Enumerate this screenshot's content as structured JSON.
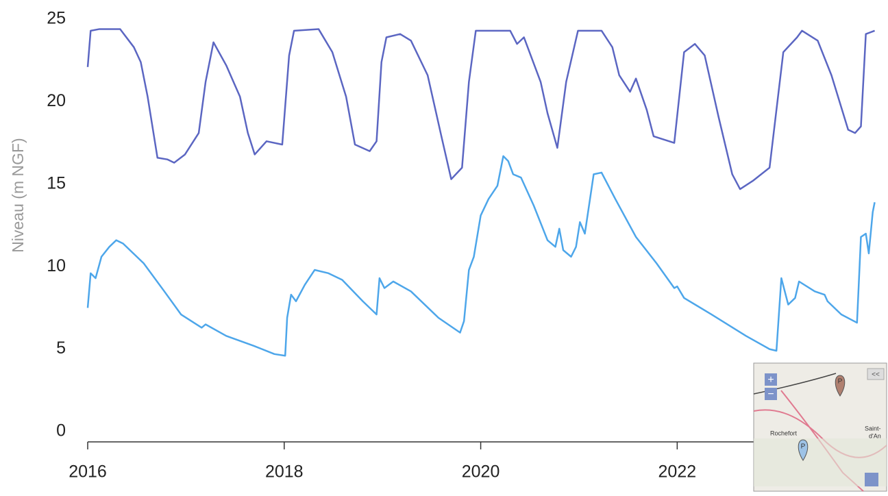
{
  "chart_data": {
    "type": "line",
    "ylabel": "Niveau (m NGF)",
    "xlim": [
      2016,
      2024.02
    ],
    "ylim": [
      0,
      25
    ],
    "xticks": [
      2016,
      2018,
      2020,
      2022
    ],
    "yticks": [
      0,
      5,
      10,
      15,
      20,
      25
    ],
    "grid": false,
    "series": [
      {
        "color": "#5b66c2",
        "x": [
          2016.0,
          2016.03,
          2016.12,
          2016.33,
          2016.47,
          2016.54,
          2016.61,
          2016.71,
          2016.81,
          2016.88,
          2016.99,
          2017.13,
          2017.2,
          2017.28,
          2017.41,
          2017.55,
          2017.63,
          2017.7,
          2017.82,
          2017.98,
          2018.05,
          2018.1,
          2018.35,
          2018.49,
          2018.63,
          2018.72,
          2018.87,
          2018.94,
          2018.99,
          2019.04,
          2019.18,
          2019.29,
          2019.46,
          2019.6,
          2019.7,
          2019.81,
          2019.88,
          2019.95,
          2020.3,
          2020.37,
          2020.44,
          2020.61,
          2020.68,
          2020.78,
          2020.87,
          2020.99,
          2021.23,
          2021.34,
          2021.41,
          2021.52,
          2021.58,
          2021.69,
          2021.76,
          2021.97,
          2022.07,
          2022.18,
          2022.28,
          2022.42,
          2022.56,
          2022.64,
          2022.77,
          2022.94,
          2023.08,
          2023.22,
          2023.27,
          2023.43,
          2023.57,
          2023.74,
          2023.81,
          2023.87,
          2023.92,
          2024.01
        ],
        "values": [
          22.1,
          24.3,
          24.4,
          24.4,
          23.3,
          22.4,
          20.3,
          16.6,
          16.5,
          16.3,
          16.8,
          18.1,
          21.2,
          23.6,
          22.2,
          20.3,
          18.1,
          16.8,
          17.6,
          17.4,
          22.8,
          24.3,
          24.4,
          23.0,
          20.3,
          17.4,
          17.0,
          17.6,
          22.4,
          23.9,
          24.1,
          23.7,
          21.6,
          17.9,
          15.3,
          16.0,
          21.2,
          24.3,
          24.3,
          23.5,
          23.9,
          21.2,
          19.3,
          17.2,
          21.2,
          24.3,
          24.3,
          23.3,
          21.6,
          20.6,
          21.4,
          19.5,
          17.9,
          17.5,
          23.0,
          23.5,
          22.8,
          19.1,
          15.6,
          14.7,
          15.2,
          16.0,
          23.0,
          23.9,
          24.3,
          23.7,
          21.6,
          18.3,
          18.1,
          18.5,
          24.1,
          24.3
        ]
      },
      {
        "color": "#4da6ea",
        "x": [
          2016.0,
          2016.03,
          2016.08,
          2016.14,
          2016.22,
          2016.29,
          2016.36,
          2016.57,
          2016.78,
          2016.95,
          2017.16,
          2017.2,
          2017.41,
          2017.69,
          2017.9,
          2018.01,
          2018.03,
          2018.07,
          2018.12,
          2018.21,
          2018.31,
          2018.45,
          2018.59,
          2018.8,
          2018.94,
          2018.97,
          2019.02,
          2019.11,
          2019.29,
          2019.57,
          2019.79,
          2019.83,
          2019.88,
          2019.93,
          2020.0,
          2020.08,
          2020.17,
          2020.23,
          2020.28,
          2020.33,
          2020.41,
          2020.54,
          2020.68,
          2020.76,
          2020.8,
          2020.84,
          2020.92,
          2020.97,
          2021.01,
          2021.06,
          2021.15,
          2021.23,
          2021.37,
          2021.58,
          2021.79,
          2021.97,
          2022.0,
          2022.07,
          2022.35,
          2022.7,
          2022.94,
          2023.01,
          2023.06,
          2023.13,
          2023.2,
          2023.24,
          2023.4,
          2023.5,
          2023.53,
          2023.67,
          2023.83,
          2023.87,
          2023.92,
          2023.95,
          2023.99,
          2024.01
        ],
        "values": [
          7.5,
          9.6,
          9.3,
          10.6,
          11.2,
          11.6,
          11.4,
          10.2,
          8.5,
          7.1,
          6.3,
          6.5,
          5.8,
          5.2,
          4.7,
          4.6,
          6.9,
          8.3,
          7.9,
          8.9,
          9.8,
          9.6,
          9.2,
          7.9,
          7.1,
          9.3,
          8.7,
          9.1,
          8.5,
          6.9,
          6.0,
          6.7,
          9.8,
          10.6,
          13.1,
          14.1,
          14.9,
          16.7,
          16.4,
          15.6,
          15.4,
          13.7,
          11.6,
          11.2,
          12.3,
          11.0,
          10.6,
          11.2,
          12.7,
          12.0,
          15.6,
          15.7,
          14.1,
          11.8,
          10.2,
          8.7,
          8.8,
          8.1,
          7.1,
          5.8,
          5.0,
          4.9,
          9.3,
          7.7,
          8.1,
          9.1,
          8.5,
          8.3,
          7.9,
          7.1,
          6.6,
          11.8,
          12.0,
          10.8,
          13.3,
          13.9
        ]
      }
    ]
  },
  "map": {
    "zoom_in": "+",
    "zoom_out": "−",
    "toggle": "<<",
    "marker": "P",
    "places": [
      "Rochefort",
      "Saint-",
      "d'An"
    ]
  }
}
